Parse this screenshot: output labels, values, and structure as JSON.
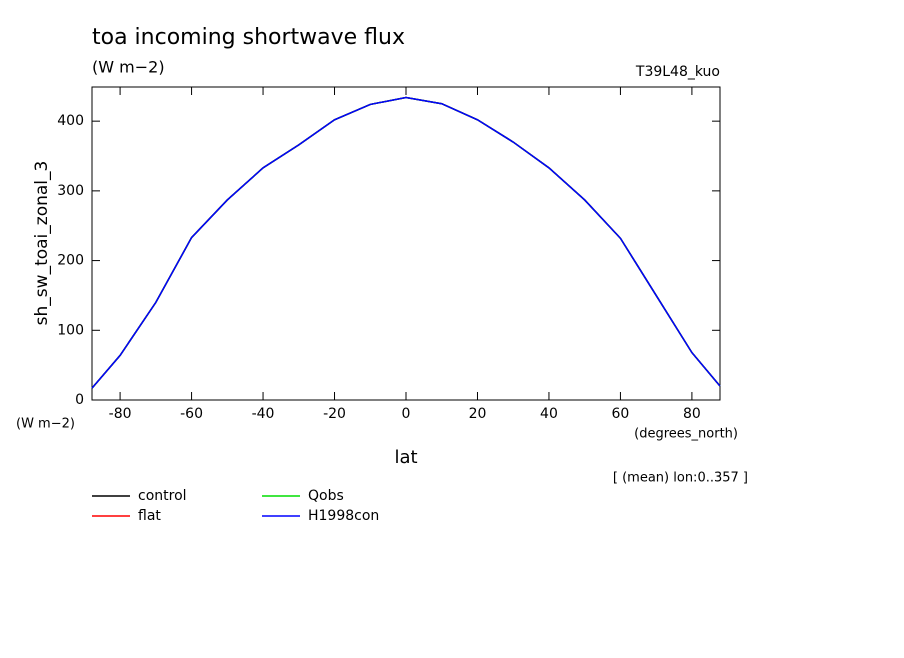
{
  "chart_data": {
    "type": "line",
    "title": "toa incoming shortwave flux",
    "subtitle": "(W m−2)",
    "annotation": "T39L48_kuo",
    "y_label": "sh_sw_toai_zonal_3",
    "y_units": "(W m−2)",
    "x_units": "(degrees_north)",
    "x_label": "lat",
    "note": "[ (mean) lon:0..357 ]",
    "x": [
      -87.86,
      -80,
      -70,
      -60,
      -50,
      -40,
      -30,
      -20,
      -10,
      0,
      10,
      20,
      30,
      40,
      50,
      60,
      70,
      80,
      87.86
    ],
    "series": [
      {
        "name": "control",
        "color": "#000000",
        "values": [
          17,
          64,
          140,
          233,
          287,
          333,
          366,
          402,
          424,
          434,
          425,
          402,
          370,
          333,
          287,
          232,
          150,
          68,
          20
        ]
      },
      {
        "name": "flat",
        "color": "#ff0000",
        "values": [
          17,
          64,
          140,
          233,
          287,
          333,
          366,
          402,
          424,
          434,
          425,
          402,
          370,
          333,
          287,
          232,
          150,
          68,
          20
        ]
      },
      {
        "name": "Qobs",
        "color": "#00dd00",
        "values": [
          17,
          64,
          140,
          233,
          287,
          333,
          366,
          402,
          424,
          434,
          425,
          402,
          370,
          333,
          287,
          232,
          150,
          68,
          20
        ]
      },
      {
        "name": "H1998con",
        "color": "#0000ff",
        "values": [
          17,
          64,
          140,
          233,
          287,
          333,
          366,
          402,
          424,
          434,
          425,
          402,
          370,
          333,
          287,
          232,
          150,
          68,
          20
        ]
      }
    ],
    "xlim": [
      -87.86,
      87.86
    ],
    "xticks": [
      -80,
      -60,
      -40,
      -20,
      0,
      20,
      40,
      60,
      80
    ],
    "ylim": [
      0,
      449
    ],
    "yticks": [
      0,
      100,
      200,
      300,
      400
    ]
  }
}
